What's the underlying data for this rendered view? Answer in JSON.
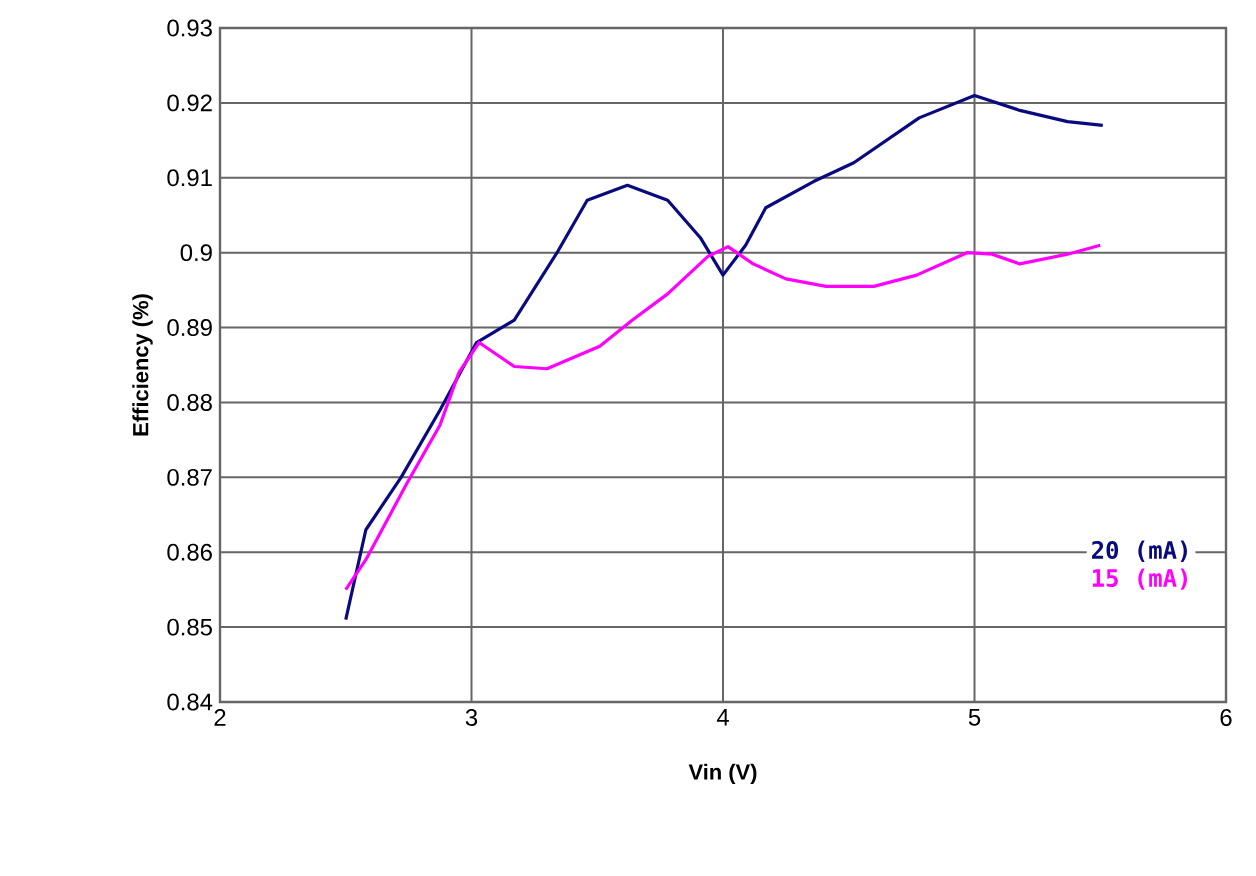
{
  "chart_data": {
    "type": "line",
    "xlabel": "Vin (V)",
    "ylabel": "Efficiency (%)",
    "xlim": [
      2,
      6
    ],
    "xticks": [
      2,
      3,
      4,
      5,
      6
    ],
    "ylim": [
      0.84,
      0.93
    ],
    "yticks": [
      0.84,
      0.85,
      0.86,
      0.87,
      0.88,
      0.89,
      0.9,
      0.91,
      0.92,
      0.93
    ],
    "grid": true,
    "legend": "bottom right",
    "marker": "none",
    "line_style": "solid",
    "series": [
      {
        "name": "20 (mA)",
        "color": "#0a0a80",
        "x": [
          2.5,
          2.58,
          2.72,
          2.875,
          3.02,
          3.17,
          3.34,
          3.46,
          3.62,
          3.78,
          3.91,
          4.0,
          4.09,
          4.17,
          4.36,
          4.52,
          4.78,
          5.0,
          5.18,
          5.37,
          5.51
        ],
        "values": [
          0.851,
          0.863,
          0.87,
          0.879,
          0.888,
          0.891,
          0.9,
          0.907,
          0.909,
          0.907,
          0.902,
          0.897,
          0.901,
          0.906,
          0.9095,
          0.912,
          0.918,
          0.921,
          0.919,
          0.9175,
          0.917
        ]
      },
      {
        "name": "15 (mA)",
        "color": "#ff00ff",
        "x": [
          2.5,
          2.58,
          2.74,
          2.875,
          2.95,
          3.03,
          3.17,
          3.3,
          3.51,
          3.64,
          3.78,
          3.94,
          4.02,
          4.12,
          4.25,
          4.41,
          4.6,
          4.77,
          4.97,
          5.07,
          5.18,
          5.37,
          5.5
        ],
        "values": [
          0.855,
          0.859,
          0.869,
          0.877,
          0.884,
          0.888,
          0.8848,
          0.8845,
          0.8875,
          0.891,
          0.8945,
          0.8995,
          0.9008,
          0.8985,
          0.8965,
          0.8955,
          0.8955,
          0.897,
          0.9,
          0.8998,
          0.8985,
          0.8998,
          0.901
        ]
      }
    ]
  }
}
